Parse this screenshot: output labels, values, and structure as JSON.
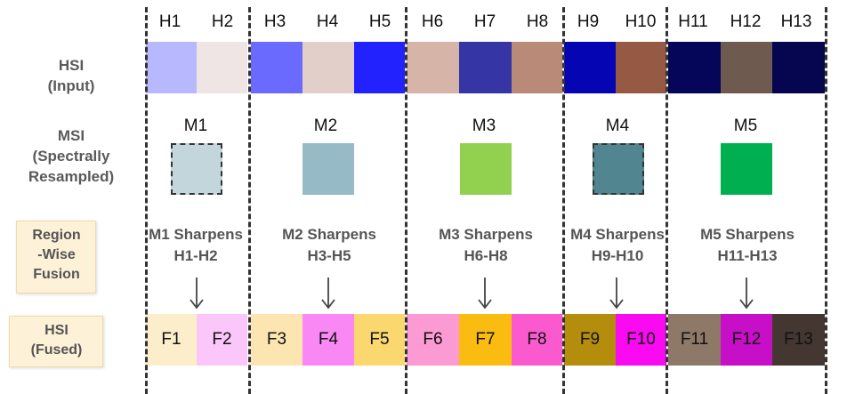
{
  "row_labels": {
    "hsi_input": [
      "HSI",
      "(Input)"
    ],
    "msi": [
      "MSI",
      "(Spectrally",
      "Resampled)"
    ],
    "fusion": [
      "Region",
      "-Wise",
      "Fusion"
    ],
    "hsi_fused": [
      "HSI",
      "(Fused)"
    ]
  },
  "hsi_bands": [
    {
      "label": "H1",
      "color": "#b8b8ff"
    },
    {
      "label": "H2",
      "color": "#f0e5e5"
    },
    {
      "label": "H3",
      "color": "#6a6aff"
    },
    {
      "label": "H4",
      "color": "#e3cfc9"
    },
    {
      "label": "H5",
      "color": "#2222ff"
    },
    {
      "label": "H6",
      "color": "#d6b4a8"
    },
    {
      "label": "H7",
      "color": "#3535a5"
    },
    {
      "label": "H8",
      "color": "#b88a77"
    },
    {
      "label": "H9",
      "color": "#0505b4"
    },
    {
      "label": "H10",
      "color": "#965a44"
    },
    {
      "label": "H11",
      "color": "#05055a"
    },
    {
      "label": "H12",
      "color": "#6e5a4f"
    },
    {
      "label": "H13",
      "color": "#060650"
    }
  ],
  "msi_bands": [
    {
      "label": "M1",
      "color": "#c3d6dc",
      "dashed": true
    },
    {
      "label": "M2",
      "color": "#96bac6",
      "dashed": false
    },
    {
      "label": "M3",
      "color": "#92d04f",
      "dashed": false
    },
    {
      "label": "M4",
      "color": "#518690",
      "dashed": true
    },
    {
      "label": "M5",
      "color": "#00b050",
      "dashed": false
    }
  ],
  "sharpen_labels": [
    [
      "M1 Sharpens",
      "H1-H2"
    ],
    [
      "M2 Sharpens",
      "H3-H5"
    ],
    [
      "M3 Sharpens",
      "H6-H8"
    ],
    [
      "M4 Sharpens",
      "H9-H10"
    ],
    [
      "M5 Sharpens",
      "H11-H13"
    ]
  ],
  "fused_bands": [
    {
      "label": "F1",
      "color": "#fdeecb"
    },
    {
      "label": "F2",
      "color": "#fbc6f9"
    },
    {
      "label": "F3",
      "color": "#fce5b0"
    },
    {
      "label": "F4",
      "color": "#f988f5"
    },
    {
      "label": "F5",
      "color": "#fbd770"
    },
    {
      "label": "F6",
      "color": "#fc9ad3"
    },
    {
      "label": "F7",
      "color": "#fbbc12"
    },
    {
      "label": "F8",
      "color": "#fb5acf"
    },
    {
      "label": "F9",
      "color": "#b48d0c"
    },
    {
      "label": "F10",
      "color": "#f90af0"
    },
    {
      "label": "F11",
      "color": "#8e7868"
    },
    {
      "label": "F12",
      "color": "#c70fc7"
    },
    {
      "label": "F13",
      "color": "#443631"
    }
  ]
}
